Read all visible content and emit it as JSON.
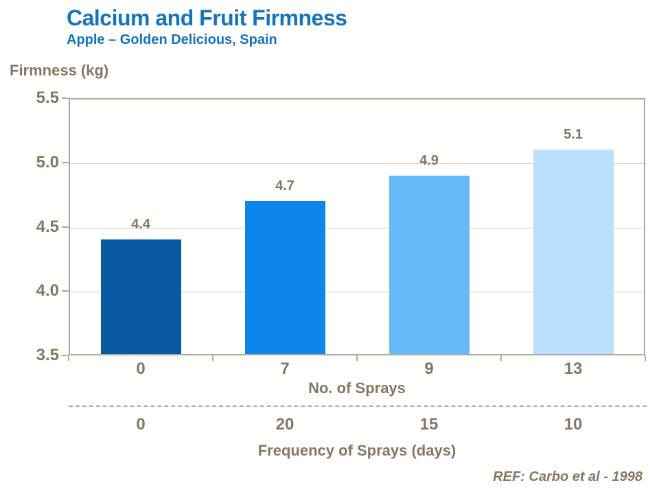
{
  "header": {
    "title": "Calcium and Fruit Firmness",
    "subtitle": "Apple – Golden Delicious,  Spain"
  },
  "chart_data": {
    "type": "bar",
    "title": "Calcium and Fruit Firmness",
    "subtitle": "Apple – Golden Delicious, Spain",
    "ylabel": "Firmness (kg)",
    "xlabel": "No. of Sprays",
    "secondary_xlabel": "Frequency of Sprays (days)",
    "ylim": [
      3.5,
      5.5
    ],
    "yticks": [
      3.5,
      4.0,
      4.5,
      5.0,
      5.5
    ],
    "ytick_labels": [
      "3.5",
      "4.0",
      "4.5",
      "5.0",
      "5.5"
    ],
    "categories": [
      "0",
      "7",
      "9",
      "13"
    ],
    "values": [
      4.4,
      4.7,
      4.9,
      5.1
    ],
    "value_labels": [
      "4.4",
      "4.7",
      "4.9",
      "5.1"
    ],
    "secondary_categories": [
      "0",
      "20",
      "15",
      "10"
    ],
    "bar_colors": [
      "#0a59a4",
      "#0c86ea",
      "#66baf9",
      "#bcdffb"
    ],
    "grid": true,
    "legend_position": "none"
  },
  "footer": {
    "ref": "REF: Carbo et al - 1998"
  },
  "colors": {
    "title_blue": "#1273be",
    "text_brown": "#877661",
    "axis_line": "#b2a89c",
    "gridline": "#d2cabf"
  }
}
